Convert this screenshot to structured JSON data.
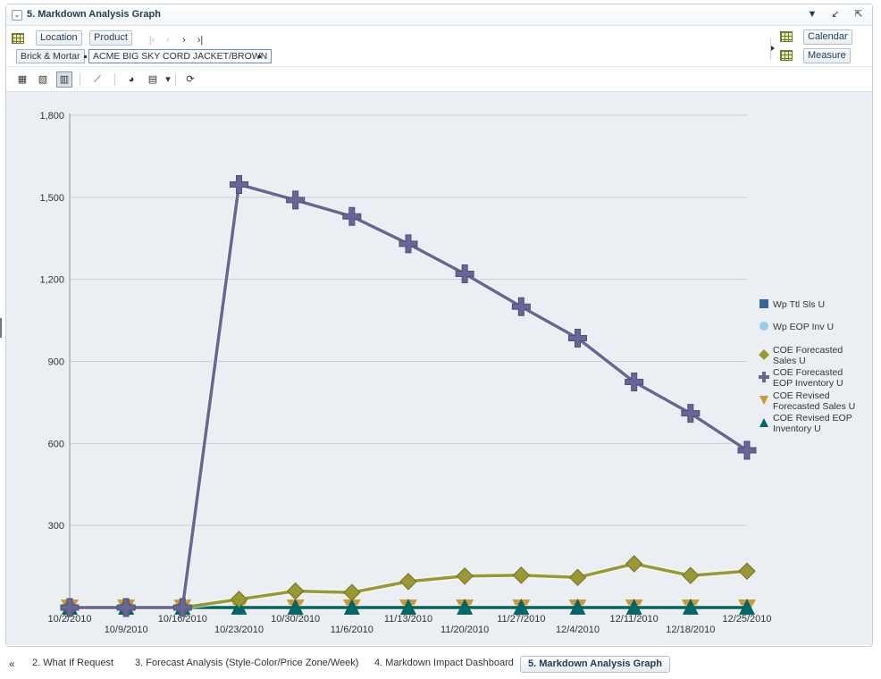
{
  "panel": {
    "title": "5. Markdown Analysis Graph",
    "collapse_glyph": "⌄",
    "icons": [
      "chevron-down-icon",
      "minimize-icon",
      "detach-icon"
    ]
  },
  "pov": {
    "location_label": "Location",
    "product_label": "Product",
    "calendar_label": "Calendar",
    "measure_label": "Measure",
    "crumbs": [
      "Brick & Mortar",
      "ACME BIG SKY CORD JACKET/BROWN"
    ]
  },
  "toolbar": {
    "icons": [
      "table-view-icon",
      "grid-chart-icon",
      "bar-chart-icon",
      "line-chart-icon",
      "data-source-icon",
      "export-icon",
      "dropdown-icon",
      "refresh-icon"
    ]
  },
  "chart_data": {
    "type": "line",
    "x": [
      "10/2/2010",
      "10/9/2010",
      "10/16/2010",
      "10/23/2010",
      "10/30/2010",
      "11/6/2010",
      "11/13/2010",
      "11/20/2010",
      "11/27/2010",
      "12/4/2010",
      "12/11/2010",
      "12/18/2010",
      "12/25/2010"
    ],
    "ylim": [
      0,
      1800
    ],
    "yticks": [
      300,
      600,
      900,
      1200,
      1500,
      1800
    ],
    "ytick_labels": [
      "300",
      "600",
      "900",
      "1,200",
      "1,500",
      "1,800"
    ],
    "grid": true,
    "legend_position": "right",
    "series": [
      {
        "name": "Wp Ttl Sls U",
        "marker": "square",
        "color": "#336699",
        "values": [
          null,
          null,
          null,
          null,
          null,
          null,
          null,
          null,
          null,
          null,
          null,
          null,
          null
        ]
      },
      {
        "name": "Wp EOP Inv U",
        "marker": "circle",
        "color": "#99ccee",
        "values": [
          null,
          null,
          null,
          null,
          null,
          null,
          null,
          null,
          null,
          null,
          null,
          null,
          null
        ]
      },
      {
        "name": "COE Forecasted Sales U",
        "marker": "diamond",
        "color": "#999933",
        "values": [
          0,
          0,
          0,
          30,
          60,
          55,
          95,
          115,
          118,
          110,
          160,
          117,
          133
        ]
      },
      {
        "name": "COE Forecasted EOP Inventory U",
        "marker": "plus",
        "color": "#666699",
        "values": [
          0,
          0,
          0,
          1547,
          1490,
          1430,
          1330,
          1220,
          1100,
          985,
          825,
          710,
          575
        ]
      },
      {
        "name": "COE Revised Forecasted Sales U",
        "marker": "triangle-down",
        "color": "#cc9933",
        "values": [
          0,
          0,
          0,
          0,
          0,
          0,
          0,
          0,
          0,
          0,
          0,
          0,
          0
        ]
      },
      {
        "name": "COE Revised EOP Inventory U",
        "marker": "triangle-up",
        "color": "#006666",
        "values": [
          0,
          0,
          0,
          0,
          0,
          0,
          0,
          0,
          0,
          0,
          0,
          0,
          0
        ]
      }
    ]
  },
  "tabs": {
    "items": [
      {
        "label": "2. What If Request",
        "active": false
      },
      {
        "label": "3. Forecast Analysis (Style-Color/Price Zone/Week)",
        "active": false
      },
      {
        "label": "4. Markdown Impact Dashboard",
        "active": false
      },
      {
        "label": "5. Markdown Analysis Graph",
        "active": true
      }
    ],
    "overflow_glyph": "«"
  }
}
